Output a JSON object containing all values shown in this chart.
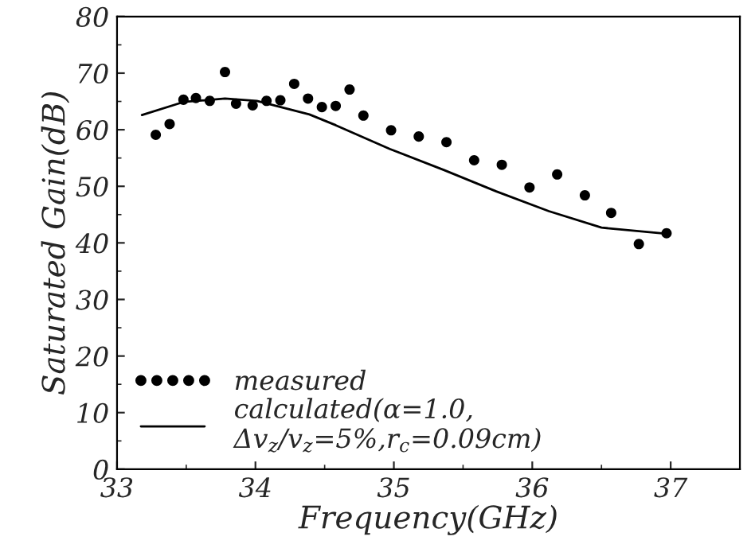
{
  "chart_data": {
    "type": "scatter",
    "xlabel": "Frequency(GHz)",
    "ylabel": "Saturated Gain(dB)",
    "xlim": [
      33,
      37.5
    ],
    "ylim": [
      0,
      80
    ],
    "xticks": [
      33,
      34,
      35,
      36,
      37
    ],
    "yticks": [
      0,
      10,
      20,
      30,
      40,
      50,
      60,
      70,
      80
    ],
    "grid": false,
    "legend": "bottom left",
    "series": [
      {
        "name": "measured",
        "marker": "circle",
        "color": "#000000",
        "x": [
          33.28,
          33.38,
          33.48,
          33.57,
          33.67,
          33.78,
          33.86,
          33.98,
          34.08,
          34.18,
          34.28,
          34.38,
          34.48,
          34.58,
          34.68,
          34.78,
          34.98,
          35.18,
          35.38,
          35.58,
          35.78,
          35.98,
          36.18,
          36.38,
          36.57,
          36.77,
          36.97
        ],
        "values": [
          59.1,
          61.0,
          65.3,
          65.6,
          65.1,
          70.2,
          64.6,
          64.3,
          65.1,
          65.2,
          68.1,
          65.5,
          64.0,
          64.2,
          67.1,
          62.5,
          59.9,
          58.8,
          57.8,
          54.6,
          53.8,
          49.8,
          52.1,
          48.4,
          45.3,
          39.8,
          41.7
        ]
      },
      {
        "name": "calculated(α=1.0,\nΔv$_{z}$/v$_{z}$=5%,r$_{c}$=0.09cm)",
        "type": "line",
        "line_style": "solid",
        "color": "#000000",
        "x": [
          33.18,
          33.48,
          33.78,
          34.01,
          34.39,
          34.58,
          34.97,
          35.36,
          35.74,
          36.12,
          36.5,
          36.97
        ],
        "values": [
          62.6,
          64.9,
          65.5,
          65.1,
          62.7,
          60.8,
          56.6,
          52.9,
          49.1,
          45.6,
          42.7,
          41.6
        ]
      }
    ]
  }
}
